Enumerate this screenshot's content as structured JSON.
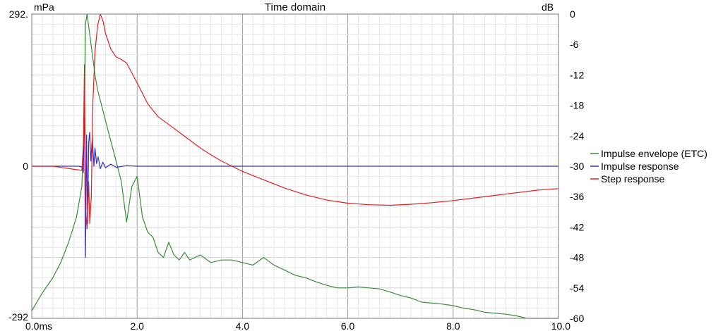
{
  "chart_data": {
    "type": "line",
    "title": "Time domain",
    "left_axis": {
      "unit": "mPa",
      "ylim": [
        -292,
        292
      ],
      "tick_labels": [
        "292.",
        "0",
        "-292"
      ]
    },
    "right_axis": {
      "unit": "dB",
      "ylim": [
        -60,
        0
      ],
      "ticks": [
        0,
        -6,
        -12,
        -18,
        -24,
        -30,
        -36,
        -42,
        -48,
        -54,
        -60
      ],
      "tick_labels": [
        "0",
        "-6",
        "-12",
        "-18",
        "-24",
        "-30",
        "-36",
        "-42",
        "-48",
        "-54",
        "-60"
      ]
    },
    "x_axis": {
      "xlim": [
        0,
        10
      ],
      "ticks": [
        0,
        2,
        4,
        6,
        8,
        10
      ],
      "tick_labels": [
        "0.0ms",
        "2.0",
        "4.0",
        "6.0",
        "8.0",
        "10.0"
      ],
      "minor_step": 0.2
    },
    "grid": true,
    "legend": {
      "placement": "right",
      "entries": [
        "Impulse envelope (ETC)",
        "Impulse response",
        "Step response"
      ]
    },
    "series": [
      {
        "name": "Impulse envelope (ETC)",
        "axis": "right",
        "color": "#3a8a3a",
        "x": [
          0.0,
          0.2,
          0.4,
          0.55,
          0.7,
          0.85,
          0.95,
          1.0,
          1.02,
          1.05,
          1.1,
          1.15,
          1.2,
          1.25,
          1.3,
          1.4,
          1.5,
          1.6,
          1.7,
          1.8,
          1.9,
          2.0,
          2.1,
          2.2,
          2.3,
          2.4,
          2.5,
          2.6,
          2.7,
          2.8,
          2.9,
          3.0,
          3.2,
          3.4,
          3.6,
          3.8,
          4.0,
          4.2,
          4.4,
          4.6,
          4.8,
          5.0,
          5.2,
          5.4,
          5.6,
          5.8,
          6.0,
          6.2,
          6.4,
          6.6,
          6.8,
          7.0,
          7.2,
          7.4,
          7.6,
          7.8,
          8.0,
          8.2,
          8.4,
          8.6,
          8.8,
          9.0,
          9.2,
          9.4,
          9.6,
          9.8,
          10.0
        ],
        "y": [
          -58.5,
          -55.0,
          -52.0,
          -49.0,
          -45.0,
          -40.0,
          -34.0,
          -20.0,
          -2.0,
          0.0,
          -4.0,
          -8.0,
          -12.0,
          -15.0,
          -17.0,
          -21.0,
          -25.0,
          -29.0,
          -33.0,
          -41.0,
          -34.0,
          -32.0,
          -40.0,
          -43.0,
          -44.0,
          -47.0,
          -48.0,
          -45.0,
          -47.5,
          -48.5,
          -47.0,
          -48.5,
          -47.5,
          -49.0,
          -48.5,
          -48.5,
          -49.0,
          -49.5,
          -48.0,
          -49.5,
          -50.5,
          -51.5,
          -52.0,
          -52.8,
          -53.5,
          -54.0,
          -54.0,
          -53.8,
          -54.0,
          -54.2,
          -54.8,
          -55.5,
          -56.0,
          -56.8,
          -57.0,
          -57.2,
          -57.5,
          -58.0,
          -58.3,
          -58.8,
          -59.0,
          -59.2,
          -59.5,
          -60.0,
          -60.0,
          -60.0,
          -60.0
        ]
      },
      {
        "name": "Impulse response",
        "axis": "left",
        "color": "#3030c8",
        "x": [
          0.0,
          0.9,
          0.96,
          0.98,
          1.0,
          1.02,
          1.04,
          1.06,
          1.08,
          1.1,
          1.12,
          1.15,
          1.18,
          1.2,
          1.23,
          1.26,
          1.3,
          1.35,
          1.4,
          1.5,
          1.6,
          1.8,
          2.0,
          3.0,
          4.0,
          5.0,
          6.0,
          7.0,
          8.0,
          9.0,
          10.0
        ],
        "y": [
          0,
          0,
          -2,
          -12,
          150,
          -175,
          60,
          -110,
          45,
          65,
          10,
          55,
          0,
          35,
          5,
          18,
          -5,
          8,
          -3,
          4,
          -2,
          1,
          0,
          0,
          0,
          0,
          0,
          0,
          0,
          0,
          0
        ]
      },
      {
        "name": "Step response",
        "axis": "left",
        "color": "#e02020",
        "x": [
          0.0,
          0.4,
          0.6,
          0.8,
          0.95,
          0.98,
          1.0,
          1.02,
          1.05,
          1.08,
          1.1,
          1.13,
          1.16,
          1.2,
          1.25,
          1.3,
          1.35,
          1.4,
          1.5,
          1.6,
          1.7,
          1.8,
          2.0,
          2.2,
          2.4,
          2.6,
          2.8,
          3.0,
          3.2,
          3.4,
          3.6,
          3.8,
          4.0,
          4.4,
          4.8,
          5.2,
          5.6,
          6.0,
          6.4,
          6.8,
          7.2,
          7.6,
          8.0,
          8.4,
          8.8,
          9.2,
          9.6,
          10.0
        ],
        "y": [
          0,
          0,
          -3,
          -6,
          -8,
          40,
          195,
          -80,
          -120,
          -30,
          -110,
          -60,
          120,
          220,
          270,
          292,
          280,
          255,
          225,
          210,
          205,
          198,
          160,
          120,
          95,
          80,
          65,
          50,
          35,
          22,
          10,
          0,
          -10,
          -26,
          -42,
          -55,
          -65,
          -71,
          -74,
          -75,
          -73,
          -70,
          -66,
          -61,
          -56,
          -51,
          -46,
          -43
        ]
      }
    ]
  }
}
